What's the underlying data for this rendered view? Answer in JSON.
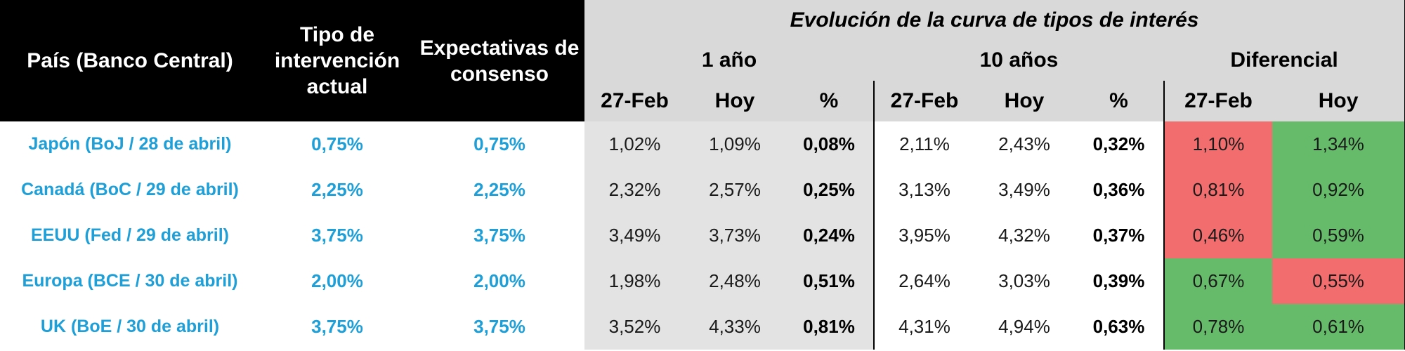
{
  "header": {
    "country_label": "País (Banco Central)",
    "rate_label": "Tipo de intervención actual",
    "expect_label": "Expectativas de consenso",
    "curve_title": "Evolución de la curva de tipos de interés",
    "group_1y": "1 año",
    "group_10y": "10 años",
    "group_diff": "Diferencial",
    "sub_1y": [
      "27-Feb",
      "Hoy",
      "%"
    ],
    "sub_10y": [
      "27-Feb",
      "Hoy",
      "%"
    ],
    "sub_diff": [
      "27-Feb",
      "Hoy"
    ]
  },
  "rows": [
    {
      "country": "Japón (BoJ / 28 de abril)",
      "rate": "0,75%",
      "expect": "0,75%",
      "y1_feb": "1,02%",
      "y1_hoy": "1,09%",
      "y1_pct": "0,08%",
      "y10_feb": "2,11%",
      "y10_hoy": "2,43%",
      "y10_pct": "0,32%",
      "diff_feb": "1,10%",
      "diff_hoy": "1,34%"
    },
    {
      "country": "Canadá (BoC / 29 de abril)",
      "rate": "2,25%",
      "expect": "2,25%",
      "y1_feb": "2,32%",
      "y1_hoy": "2,57%",
      "y1_pct": "0,25%",
      "y10_feb": "3,13%",
      "y10_hoy": "3,49%",
      "y10_pct": "0,36%",
      "diff_feb": "0,81%",
      "diff_hoy": "0,92%"
    },
    {
      "country": "EEUU (Fed / 29 de abril)",
      "rate": "3,75%",
      "expect": "3,75%",
      "y1_feb": "3,49%",
      "y1_hoy": "3,73%",
      "y1_pct": "0,24%",
      "y10_feb": "3,95%",
      "y10_hoy": "4,32%",
      "y10_pct": "0,37%",
      "diff_feb": "0,46%",
      "diff_hoy": "0,59%"
    },
    {
      "country": "Europa (BCE / 30 de abril)",
      "rate": "2,00%",
      "expect": "2,00%",
      "y1_feb": "1,98%",
      "y1_hoy": "2,48%",
      "y1_pct": "0,51%",
      "y10_feb": "2,64%",
      "y10_hoy": "3,03%",
      "y10_pct": "0,39%",
      "diff_feb": "0,67%",
      "diff_hoy": "0,55%"
    },
    {
      "country": "UK (BoE / 30 de abril)",
      "rate": "3,75%",
      "expect": "3,75%",
      "y1_feb": "3,52%",
      "y1_hoy": "4,33%",
      "y1_pct": "0,81%",
      "y10_feb": "4,31%",
      "y10_hoy": "4,94%",
      "y10_pct": "0,63%",
      "diff_feb": "0,78%",
      "diff_hoy": "0,61%"
    }
  ],
  "colors": {
    "header_black": "#000000",
    "header_gray": "#d9d9d9",
    "country_blue": "#1e9fd8",
    "diff_red": "#f26d6d",
    "diff_green": "#66bb6a"
  }
}
